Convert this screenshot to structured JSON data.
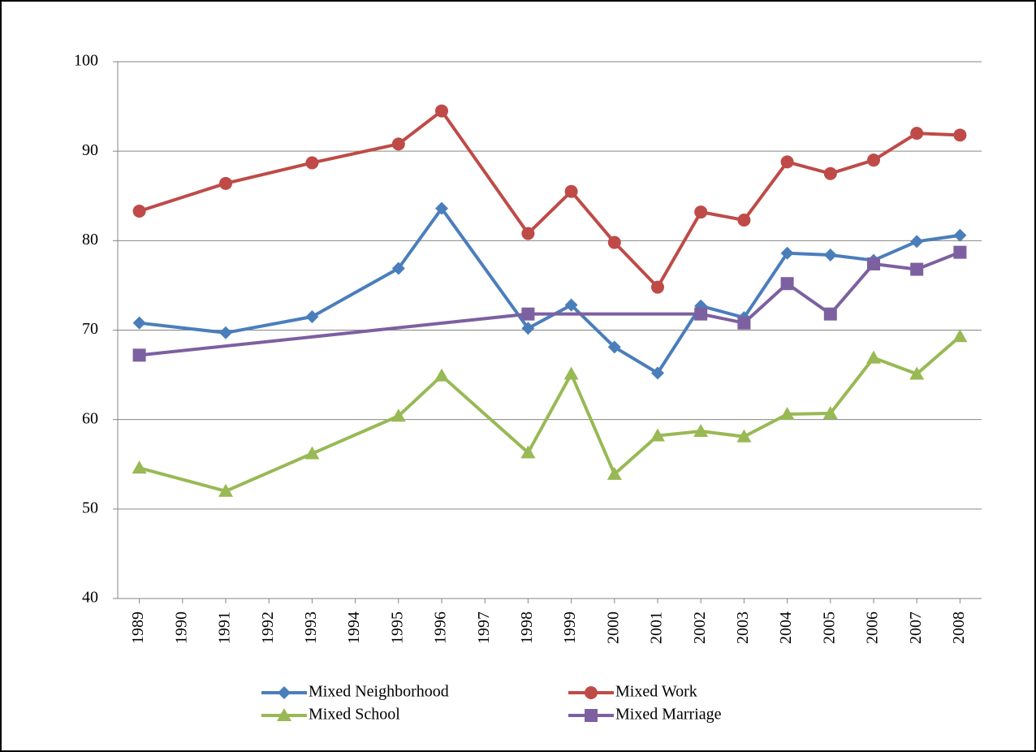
{
  "chart_data": {
    "type": "line",
    "x": [
      1989,
      1991,
      1993,
      1995,
      1996,
      1998,
      1999,
      2000,
      2001,
      2002,
      2003,
      2004,
      2005,
      2006,
      2007,
      2008
    ],
    "xlim": [
      1988.5,
      2008.5
    ],
    "xticks": [
      1989,
      1990,
      1991,
      1992,
      1993,
      1994,
      1995,
      1996,
      1997,
      1998,
      1999,
      2000,
      2001,
      2002,
      2003,
      2004,
      2005,
      2006,
      2007,
      2008
    ],
    "ylim": [
      40,
      100
    ],
    "yticks": [
      40,
      50,
      60,
      70,
      80,
      90,
      100
    ],
    "grid": true,
    "legend": "bottom",
    "series": [
      {
        "name": "Mixed Neighborhood",
        "color": "#4a7ebb",
        "marker": "diamond",
        "values": [
          70.8,
          69.7,
          71.5,
          76.9,
          83.6,
          70.2,
          72.8,
          68.1,
          65.2,
          72.7,
          71.4,
          78.6,
          78.4,
          77.8,
          79.9,
          80.6
        ]
      },
      {
        "name": "Mixed Work",
        "color": "#be4b48",
        "marker": "circle",
        "values": [
          83.3,
          86.4,
          88.7,
          90.8,
          94.5,
          80.8,
          85.5,
          79.8,
          74.8,
          83.2,
          82.3,
          88.8,
          87.5,
          89.0,
          92.0,
          91.8
        ]
      },
      {
        "name": "Mixed School",
        "color": "#98b954",
        "marker": "triangle",
        "values": [
          54.6,
          52.0,
          56.2,
          60.4,
          64.9,
          56.3,
          65.1,
          53.9,
          58.2,
          58.7,
          58.1,
          60.6,
          60.7,
          66.9,
          65.1,
          69.3
        ]
      },
      {
        "name": "Mixed Marriage",
        "color": "#7d60a0",
        "marker": "square",
        "x": [
          1989,
          1998,
          2002,
          2003,
          2004,
          2005,
          2006,
          2007,
          2008
        ],
        "values": [
          67.2,
          71.8,
          71.8,
          70.8,
          75.2,
          71.8,
          77.4,
          76.8,
          78.7
        ]
      }
    ]
  }
}
